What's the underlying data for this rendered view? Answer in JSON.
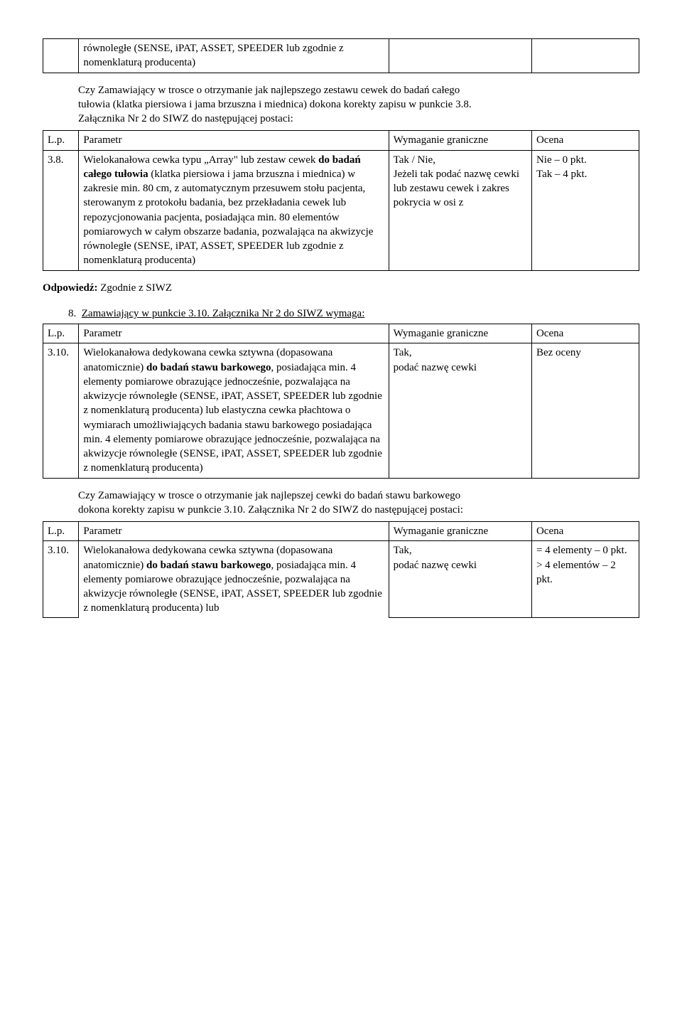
{
  "table1": {
    "lp": "",
    "param": "równoległe (SENSE, iPAT, ASSET, SPEEDER lub zgodnie z nomenklaturą producenta)",
    "wym": "",
    "ocena": ""
  },
  "para1_line1": "Czy Zamawiający w trosce o otrzymanie jak najlepszego zestawu cewek do badań całego",
  "para1_line2": "tułowia (klatka piersiowa i jama brzuszna i miednica) dokona korekty zapisu w punkcie 3.8.",
  "para1_line3": "Załącznika Nr 2 do SIWZ do następującej postaci:",
  "header": {
    "lp": "L.p.",
    "param": "Parametr",
    "wym": "Wymaganie graniczne",
    "ocena": "Ocena"
  },
  "table2": {
    "lp": "3.8.",
    "param_plain1": "Wielokanałowa cewka typu „Array\" lub zestaw cewek ",
    "param_bold1": "do badań całego tułowia",
    "param_plain2": " (klatka piersiowa i jama brzuszna i miednica) w zakresie min. 80 cm, z automatycznym przesuwem stołu pacjenta, sterowanym z protokołu badania, bez przekładania cewek lub repozycjonowania pacjenta, posiadająca min. 80 elementów pomiarowych w całym obszarze badania, pozwalająca na akwizycje równoległe (SENSE, iPAT, ASSET, SPEEDER lub zgodnie z nomenklaturą producenta)",
    "wym": "Tak / Nie,\nJeżeli tak podać nazwę cewki lub zestawu cewek i zakres pokrycia w osi z",
    "ocena": "Nie – 0 pkt.\nTak – 4 pkt."
  },
  "odp_label": "Odpowiedź: ",
  "odp_text": "Zgodnie z SIWZ",
  "q8_num": "8.",
  "q8_text": "Zamawiający w punkcie 3.10. Załącznika Nr 2 do SIWZ wymaga:",
  "table3": {
    "lp": "3.10.",
    "param_plain1": "Wielokanałowa dedykowana cewka sztywna (dopasowana anatomicznie) ",
    "param_bold1": "do badań stawu barkowego",
    "param_plain2": ", posiadająca min. 4 elementy pomiarowe obrazujące jednocześnie, pozwalająca na akwizycje równoległe (SENSE, iPAT, ASSET, SPEEDER lub zgodnie z nomenklaturą producenta) lub elastyczna cewka płachtowa o wymiarach umożliwiających badania stawu barkowego posiadająca min. 4 elementy pomiarowe obrazujące jednocześnie, pozwalająca na akwizycje równoległe (SENSE, iPAT, ASSET, SPEEDER lub zgodnie z nomenklaturą producenta)",
    "wym": "Tak,\npodać nazwę cewki",
    "ocena": "Bez oceny"
  },
  "para2_line1": "Czy Zamawiający w trosce o otrzymanie jak najlepszej cewki do badań stawu barkowego",
  "para2_line2": "dokona korekty zapisu w punkcie 3.10. Załącznika Nr 2 do SIWZ do następującej postaci:",
  "table4": {
    "lp": "3.10.",
    "param_plain1": "Wielokanałowa dedykowana cewka sztywna (dopasowana anatomicznie) ",
    "param_bold1": "do badań stawu barkowego",
    "param_plain2": ", posiadająca min. 4 elementy pomiarowe obrazujące jednocześnie, pozwalająca na akwizycje równoległe (SENSE, iPAT, ASSET, SPEEDER lub zgodnie z nomenklaturą producenta) lub",
    "wym": "Tak,\npodać nazwę cewki",
    "ocena": "= 4 elementy – 0 pkt.\n> 4 elementów – 2 pkt."
  }
}
